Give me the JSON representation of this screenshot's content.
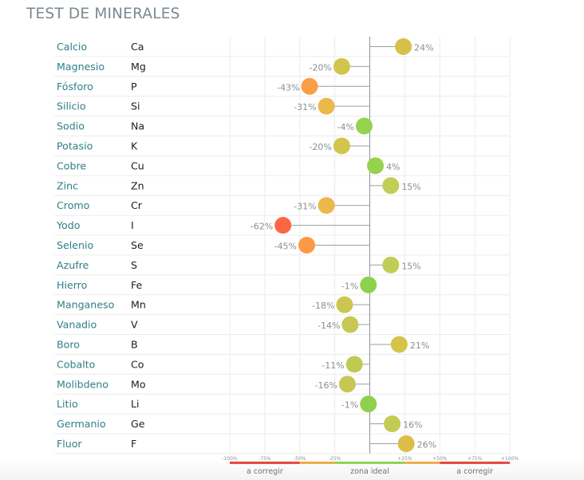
{
  "title": "TEST DE MINERALES",
  "chart_data": {
    "type": "lollipop",
    "title": "TEST DE MINERALES",
    "xlim": [
      -100,
      100
    ],
    "unit": "%",
    "grid": true,
    "rows": [
      {
        "name": "Calcio",
        "symbol": "Ca",
        "value": 24,
        "label": "24%",
        "color": "#d6c148"
      },
      {
        "name": "Magnesio",
        "symbol": "Mg",
        "value": -20,
        "label": "-20%",
        "color": "#d1c54c"
      },
      {
        "name": "Fósforo",
        "symbol": "P",
        "value": -43,
        "label": "-43%",
        "color": "#fb9e45"
      },
      {
        "name": "Silicio",
        "symbol": "Si",
        "value": -31,
        "label": "-31%",
        "color": "#ecb84a"
      },
      {
        "name": "Sodio",
        "symbol": "Na",
        "value": -4,
        "label": "-4%",
        "color": "#95d24e"
      },
      {
        "name": "Potasio",
        "symbol": "K",
        "value": -20,
        "label": "-20%",
        "color": "#d1c54c"
      },
      {
        "name": "Cobre",
        "symbol": "Cu",
        "value": 4,
        "label": "4%",
        "color": "#95d24e"
      },
      {
        "name": "Zinc",
        "symbol": "Zn",
        "value": 15,
        "label": "15%",
        "color": "#c3cc55"
      },
      {
        "name": "Cromo",
        "symbol": "Cr",
        "value": -31,
        "label": "-31%",
        "color": "#ecb84a"
      },
      {
        "name": "Yodo",
        "symbol": "I",
        "value": -62,
        "label": "-62%",
        "color": "#fd6644"
      },
      {
        "name": "Selenio",
        "symbol": "Se",
        "value": -45,
        "label": "-45%",
        "color": "#fb9a45"
      },
      {
        "name": "Azufre",
        "symbol": "S",
        "value": 15,
        "label": "15%",
        "color": "#c3cc55"
      },
      {
        "name": "Hierro",
        "symbol": "Fe",
        "value": -1,
        "label": "-1%",
        "color": "#8fd14f"
      },
      {
        "name": "Manganeso",
        "symbol": "Mn",
        "value": -18,
        "label": "-18%",
        "color": "#ccc651"
      },
      {
        "name": "Vanadio",
        "symbol": "V",
        "value": -14,
        "label": "-14%",
        "color": "#c6c853"
      },
      {
        "name": "Boro",
        "symbol": "B",
        "value": 21,
        "label": "21%",
        "color": "#d5c34a"
      },
      {
        "name": "Cobalto",
        "symbol": "Co",
        "value": -11,
        "label": "-11%",
        "color": "#bfca55"
      },
      {
        "name": "Molibdeno",
        "symbol": "Mo",
        "value": -16,
        "label": "-16%",
        "color": "#c8c753"
      },
      {
        "name": "Litio",
        "symbol": "Li",
        "value": -1,
        "label": "-1%",
        "color": "#8fd14f"
      },
      {
        "name": "Germanio",
        "symbol": "Ge",
        "value": 16,
        "label": "16%",
        "color": "#c4cb55"
      },
      {
        "name": "Fluor",
        "symbol": "F",
        "value": 26,
        "label": "26%",
        "color": "#dcbd46"
      }
    ],
    "ticks": [
      {
        "value": -100,
        "label": "-100%"
      },
      {
        "value": -75,
        "label": "-75%"
      },
      {
        "value": -50,
        "label": "-50%"
      },
      {
        "value": -25,
        "label": "-25%"
      },
      {
        "value": 25,
        "label": "+25%"
      },
      {
        "value": 50,
        "label": "+50%"
      },
      {
        "value": 75,
        "label": "+75%"
      },
      {
        "value": 100,
        "label": "+100%"
      }
    ],
    "zones": [
      {
        "from": -100,
        "to": -50,
        "color": "#e8453c"
      },
      {
        "from": -50,
        "to": -25,
        "color": "#f0aa45"
      },
      {
        "from": -25,
        "to": 25,
        "color": "#8fd14f"
      },
      {
        "from": 25,
        "to": 50,
        "color": "#f0aa45"
      },
      {
        "from": 50,
        "to": 100,
        "color": "#e8453c"
      }
    ],
    "zone_labels": [
      {
        "center": -75,
        "label": "a corregir"
      },
      {
        "center": 0,
        "label": "zona ideal"
      },
      {
        "center": 75,
        "label": "a corregir"
      }
    ]
  }
}
